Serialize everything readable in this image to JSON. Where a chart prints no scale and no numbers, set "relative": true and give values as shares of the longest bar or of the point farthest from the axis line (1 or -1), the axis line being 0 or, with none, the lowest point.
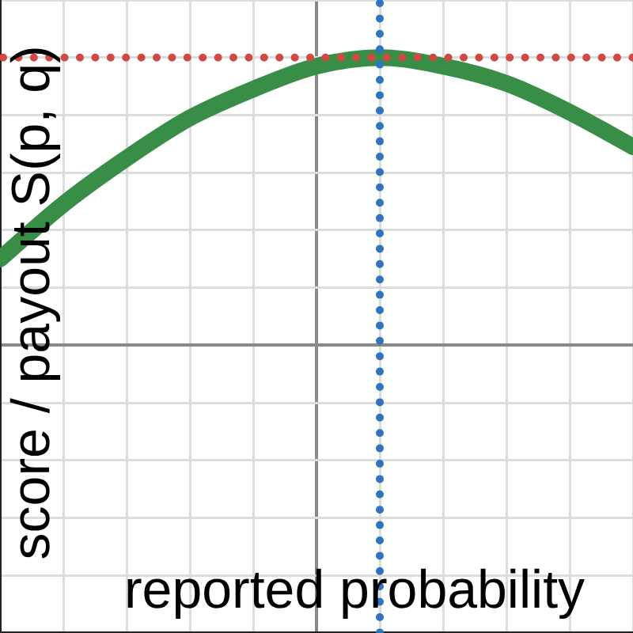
{
  "chart_data": {
    "type": "line",
    "xlabel": "reported probability",
    "ylabel": "score / payout S(p, q)",
    "categories": [
      null,
      null,
      null,
      null,
      null,
      null,
      null,
      null,
      null,
      null,
      null
    ],
    "values": [
      0.3,
      0.49,
      0.65,
      0.79,
      0.89,
      0.97,
      1,
      0.97,
      0.91,
      0.81,
      0.69
    ],
    "color": "#388e47",
    "relative": true,
    "grid": true,
    "ref_lines": [
      {
        "axis": "y",
        "value": 1,
        "color": "#d04a43",
        "line_style": "dotted"
      }
    ]
  }
}
